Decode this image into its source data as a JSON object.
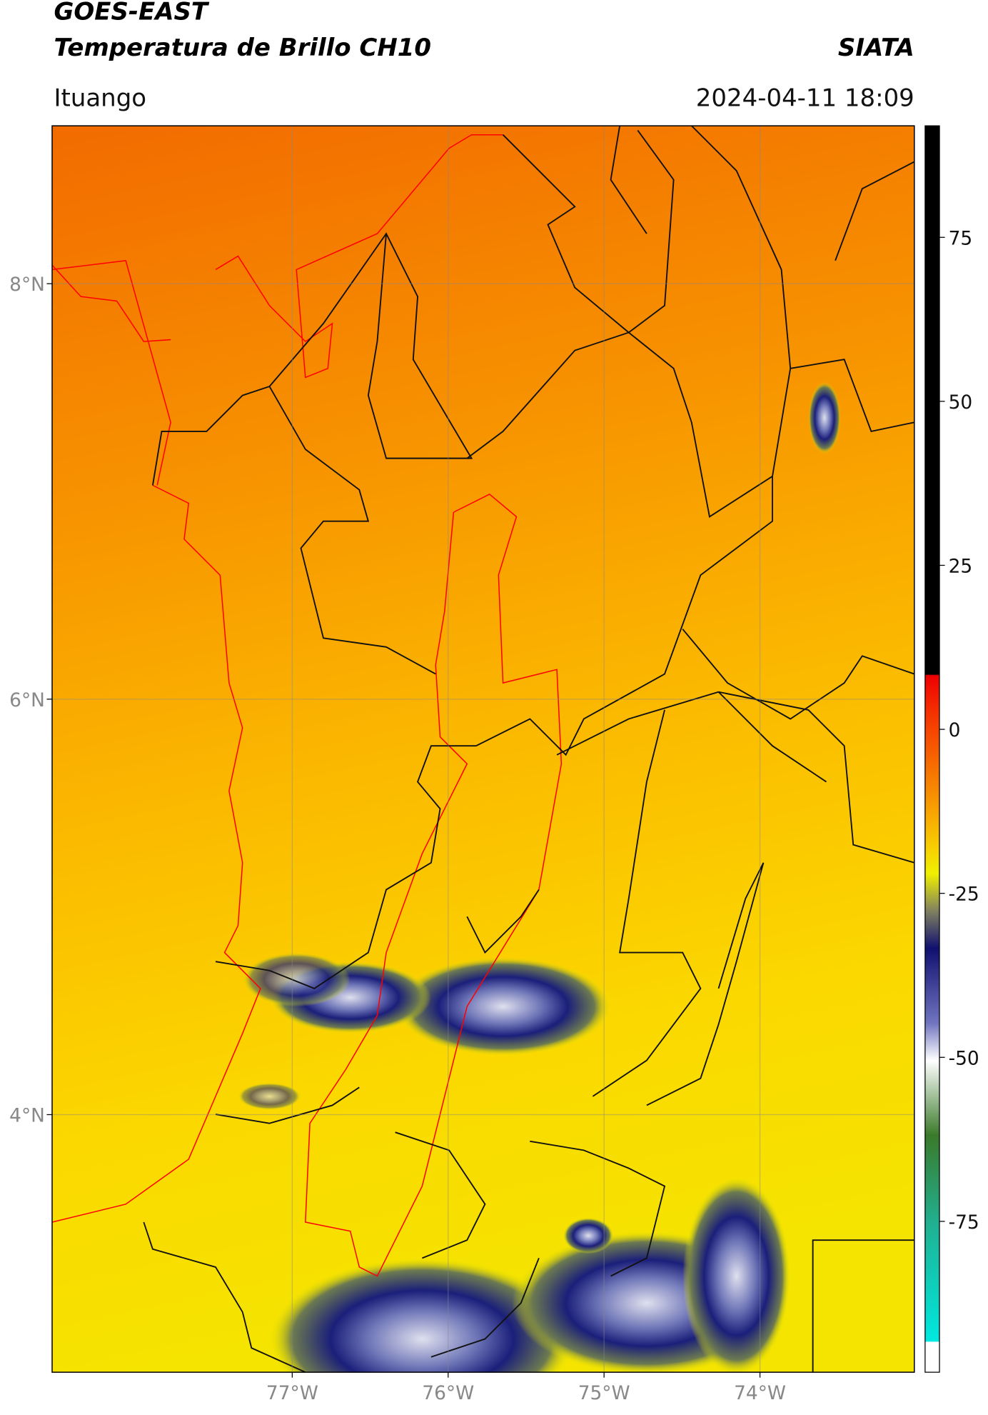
{
  "header": {
    "title_line1": "GOES-EAST",
    "title_line2": "Temperatura de Brillo CH10",
    "organization": "SIATA",
    "location": "Ituango",
    "datetime": "2024-04-11 18:09"
  },
  "map": {
    "xlim": [
      -78.54,
      -73.01
    ],
    "ylim": [
      2.76,
      8.76
    ],
    "xticks": [
      {
        "value": -77,
        "label": "77°W"
      },
      {
        "value": -76,
        "label": "76°W"
      },
      {
        "value": -75,
        "label": "75°W"
      },
      {
        "value": -74,
        "label": "74°W"
      }
    ],
    "yticks": [
      {
        "value": 8,
        "label": "8°N"
      },
      {
        "value": 6,
        "label": "6°N"
      },
      {
        "value": 4,
        "label": "4°N"
      }
    ],
    "grid": true
  },
  "colorbar": {
    "lim": [
      -98,
      92
    ],
    "ticks": [
      75,
      50,
      25,
      0,
      -25,
      -50,
      -75
    ]
  }
}
